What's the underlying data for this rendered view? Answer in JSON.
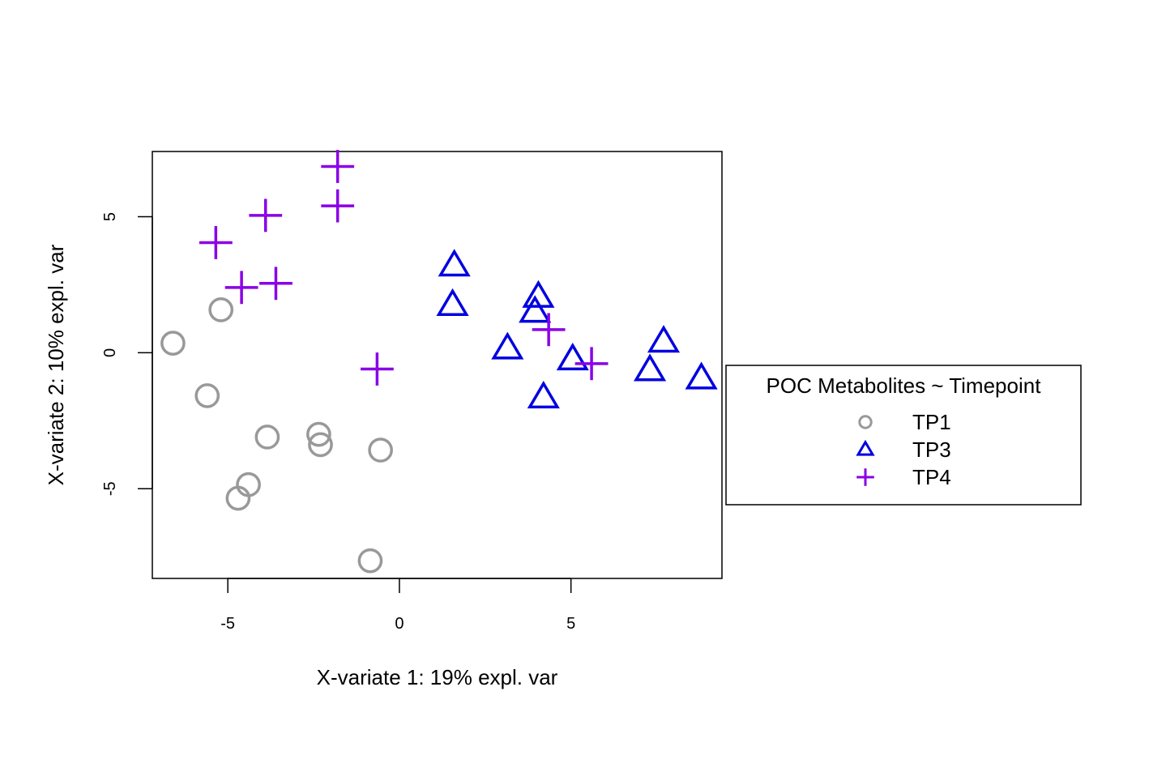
{
  "chart_data": {
    "type": "scatter",
    "xlabel": "X-variate 1: 19% expl. var",
    "ylabel": "X-variate 2: 10% expl. var",
    "xlim": [
      -7.2,
      9.4
    ],
    "ylim": [
      -8.3,
      7.4
    ],
    "xticks": [
      -5,
      0,
      5
    ],
    "xtick_labels": [
      "-5",
      "0",
      "5"
    ],
    "yticks": [
      -5,
      0,
      5
    ],
    "ytick_labels": [
      "-5",
      "0",
      "5"
    ],
    "grid": false,
    "legend": {
      "title": "POC Metabolites ~ Timepoint",
      "placement": "right"
    },
    "series": [
      {
        "name": "TP1",
        "marker": "circle",
        "color": "#999999",
        "points": [
          {
            "x": -6.6,
            "y": 0.35
          },
          {
            "x": -5.2,
            "y": 1.58
          },
          {
            "x": -5.6,
            "y": -1.58
          },
          {
            "x": -3.85,
            "y": -3.1
          },
          {
            "x": -2.35,
            "y": -3.0
          },
          {
            "x": -2.3,
            "y": -3.38
          },
          {
            "x": -0.55,
            "y": -3.58
          },
          {
            "x": -4.4,
            "y": -4.85
          },
          {
            "x": -4.7,
            "y": -5.35
          },
          {
            "x": -0.85,
            "y": -7.65
          }
        ]
      },
      {
        "name": "TP3",
        "marker": "triangle",
        "color": "#0000E0",
        "points": [
          {
            "x": 1.6,
            "y": 3.2
          },
          {
            "x": 1.55,
            "y": 1.75
          },
          {
            "x": 4.05,
            "y": 2.05
          },
          {
            "x": 3.95,
            "y": 1.5
          },
          {
            "x": 3.15,
            "y": 0.15
          },
          {
            "x": 5.05,
            "y": -0.25
          },
          {
            "x": 7.7,
            "y": 0.4
          },
          {
            "x": 7.3,
            "y": -0.65
          },
          {
            "x": 8.8,
            "y": -0.95
          },
          {
            "x": 4.2,
            "y": -1.65
          }
        ]
      },
      {
        "name": "TP4",
        "marker": "plus",
        "color": "#8A00E6",
        "points": [
          {
            "x": -1.8,
            "y": 6.85
          },
          {
            "x": -1.8,
            "y": 5.4
          },
          {
            "x": -3.9,
            "y": 5.05
          },
          {
            "x": -5.35,
            "y": 4.05
          },
          {
            "x": -4.6,
            "y": 2.4
          },
          {
            "x": -3.6,
            "y": 2.55
          },
          {
            "x": 4.35,
            "y": 0.85
          },
          {
            "x": 5.6,
            "y": -0.4
          },
          {
            "x": -0.65,
            "y": -0.6
          }
        ]
      }
    ]
  }
}
